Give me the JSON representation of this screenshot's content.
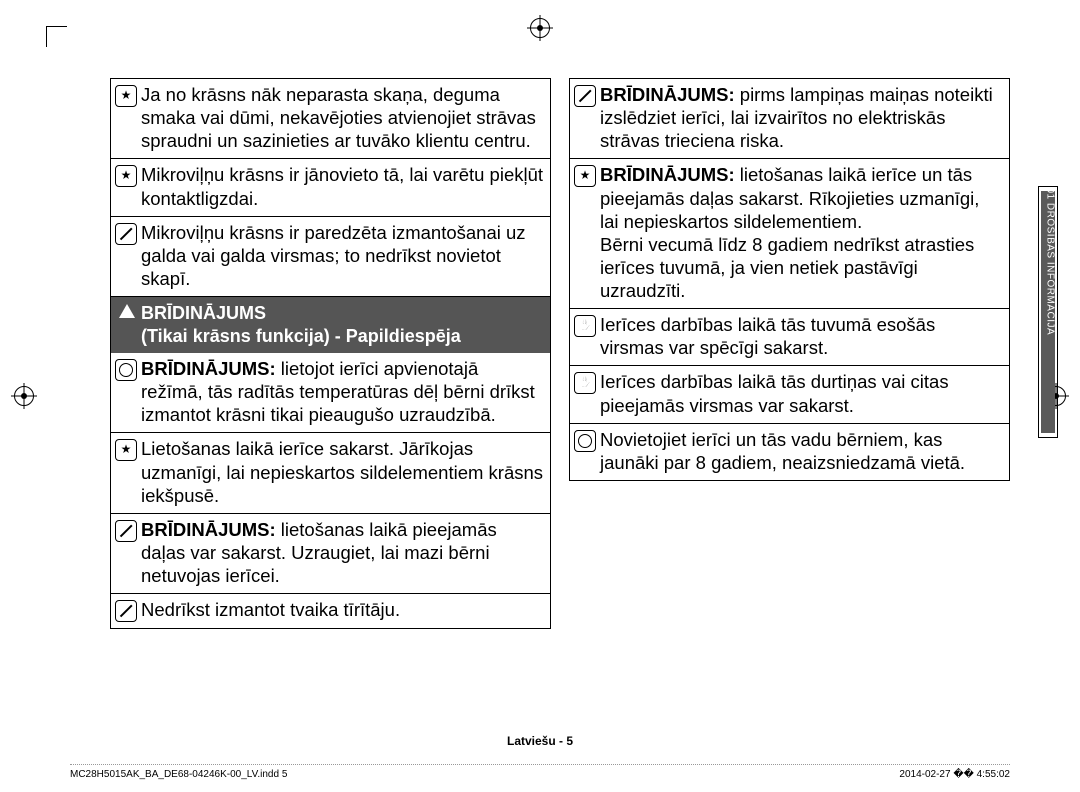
{
  "left": {
    "items": [
      {
        "icon": "star",
        "text": "Ja no krāsns nāk neparasta skaņa, deguma smaka vai dūmi, nekavējoties atvienojiet strāvas spraudni un sazinieties ar tuvāko klientu centru."
      },
      {
        "icon": "star",
        "text": "Mikroviļņu krāsns ir jānovieto tā, lai varētu piekļūt kontaktligzdai."
      },
      {
        "icon": "slash",
        "text": "Mikroviļņu krāsns ir paredzēta izmantošanai uz galda vai galda virsmas; to nedrīkst novietot skapī."
      }
    ],
    "header": "BRĪDINĀJUMS",
    "subheader": "(Tikai krāsns funkcija) - Papildiespēja",
    "items2": [
      {
        "icon": "circle",
        "bold": "BRĪDINĀJUMS:",
        "text": " lietojot ierīci apvienotajā režīmā, tās radītās temperatūras dēļ bērni drīkst izmantot krāsni tikai pieaugušo uzraudzībā."
      },
      {
        "icon": "star",
        "text": "Lietošanas laikā ierīce sakarst. Jārīkojas uzmanīgi, lai nepieskartos sildelementiem krāsns iekšpusē."
      },
      {
        "icon": "slash",
        "bold": "BRĪDINĀJUMS:",
        "text": " lietošanas laikā pieejamās daļas var sakarst. Uzraugiet, lai mazi bērni netuvojas ierīcei."
      },
      {
        "icon": "slash",
        "text": "Nedrīkst izmantot tvaika tīrītāju."
      }
    ]
  },
  "right": {
    "items": [
      {
        "icon": "slash",
        "bold": "BRĪDINĀJUMS:",
        "text": " pirms lampiņas maiņas noteikti izslēdziet ierīci, lai izvairītos no elektriskās strāvas trieciena riska."
      },
      {
        "icon": "star",
        "bold": "BRĪDINĀJUMS:",
        "text": " lietošanas laikā ierīce un tās pieejamās daļas sakarst. Rīkojieties uzmanīgi, lai nepieskartos sildelementiem.\nBērni vecumā līdz 8 gadiem nedrīkst atrasties ierīces tuvumā, ja vien netiek pastāvīgi uzraudzīti."
      },
      {
        "icon": "hand",
        "text": "Ierīces darbības laikā tās tuvumā esošās virsmas var spēcīgi sakarst."
      },
      {
        "icon": "hand",
        "text": "Ierīces darbības laikā tās durtiņas vai citas pieejamās virsmas var sakarst."
      },
      {
        "icon": "circle",
        "text": "Novietojiet ierīci un tās vadu bērniem, kas jaunāki par 8 gadiem, neaizsniedzamā vietā."
      }
    ]
  },
  "sideTab": "01  DROŠĪBAS INFORMĀCIJA",
  "pageNum": "Latviešu - 5",
  "footer_left": "MC28H5015AK_BA_DE68-04246K-00_LV.indd   5",
  "footer_right": "2014-02-27   �� 4:55:02"
}
